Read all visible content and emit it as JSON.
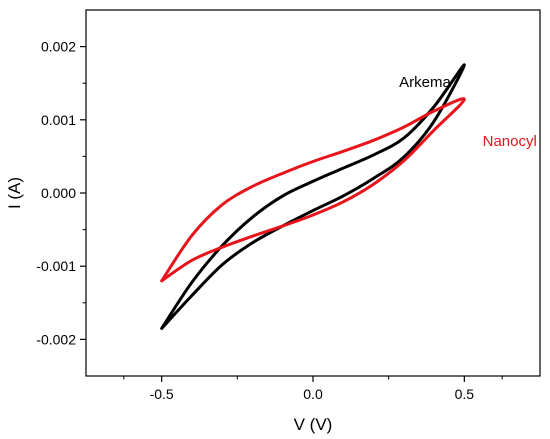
{
  "chart_data": {
    "type": "line",
    "title": "",
    "xlabel": "V (V)",
    "ylabel": "I (A)",
    "xlim": [
      -0.75,
      0.75
    ],
    "ylim": [
      -0.0025,
      0.0025
    ],
    "x_ticks": [
      -0.5,
      0.0,
      0.5
    ],
    "x_tick_labels": [
      "-0.5",
      "0.0",
      "0.5"
    ],
    "y_ticks": [
      -0.002,
      -0.001,
      0.0,
      0.001,
      0.002
    ],
    "y_tick_labels": [
      "-0.002",
      "-0.001",
      "0.000",
      "0.001",
      "0.002"
    ],
    "grid": false,
    "legend": "none",
    "series": [
      {
        "name": "Arkema",
        "color": "#000000",
        "x": [
          -0.5,
          -0.4,
          -0.3,
          -0.2,
          -0.1,
          0.0,
          0.1,
          0.2,
          0.3,
          0.4,
          0.5,
          0.4,
          0.3,
          0.2,
          0.1,
          0.0,
          -0.1,
          -0.2,
          -0.3,
          -0.4,
          -0.5
        ],
        "y": [
          -0.00185,
          -0.0014,
          -0.00098,
          -0.00068,
          -0.00045,
          -0.00024,
          -4e-05,
          0.0002,
          0.00049,
          0.00098,
          0.00175,
          0.00118,
          0.00075,
          0.00052,
          0.00034,
          0.00016,
          -4e-05,
          -0.00033,
          -0.00072,
          -0.00122,
          -0.00185
        ]
      },
      {
        "name": "Nanocyl",
        "color": "#e8141b",
        "x": [
          -0.5,
          -0.4,
          -0.3,
          -0.2,
          -0.1,
          0.0,
          0.1,
          0.2,
          0.3,
          0.4,
          0.5,
          0.4,
          0.3,
          0.2,
          0.1,
          0.0,
          -0.1,
          -0.2,
          -0.3,
          -0.4,
          -0.5
        ],
        "y": [
          -0.0012,
          -0.00092,
          -0.00074,
          -0.00059,
          -0.00045,
          -0.0003,
          -0.00012,
          0.00012,
          0.00044,
          0.00086,
          0.00128,
          0.00112,
          0.0009,
          0.00072,
          0.00057,
          0.00043,
          0.00027,
          9e-05,
          -0.00016,
          -0.00058,
          -0.0012
        ]
      }
    ],
    "annotations": [
      {
        "text": "Arkema",
        "x": 0.37,
        "y": 0.00145,
        "color": "#000000"
      },
      {
        "text": "Nanocyl",
        "x": 0.65,
        "y": 0.00064,
        "color": "#e8141b"
      }
    ]
  }
}
